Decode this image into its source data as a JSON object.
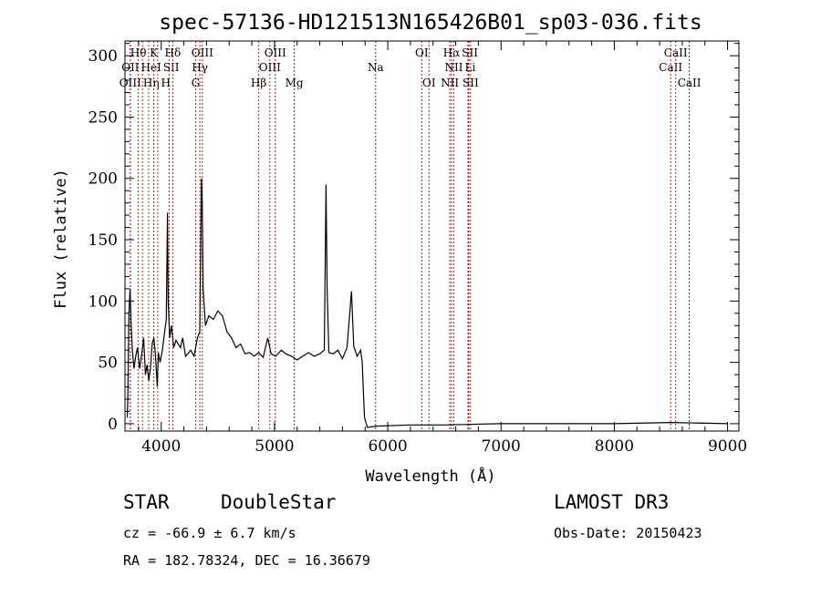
{
  "chart_data": {
    "type": "line",
    "title": "spec-57136-HD121513N165426B01_sp03-036.fits",
    "xlabel": "Wavelength (Å)",
    "ylabel": "Flux (relative)",
    "xlim": [
      3680,
      9100
    ],
    "ylim": [
      -6,
      312
    ],
    "xticks": [
      4000,
      5000,
      6000,
      7000,
      8000,
      9000
    ],
    "yticks": [
      0,
      50,
      100,
      150,
      200,
      250,
      300
    ],
    "grid": false,
    "series": [
      {
        "name": "spectrum",
        "points": [
          [
            3700,
            5
          ],
          [
            3705,
            20
          ],
          [
            3715,
            90
          ],
          [
            3725,
            110
          ],
          [
            3735,
            80
          ],
          [
            3745,
            60
          ],
          [
            3760,
            45
          ],
          [
            3775,
            55
          ],
          [
            3790,
            62
          ],
          [
            3810,
            45
          ],
          [
            3830,
            58
          ],
          [
            3845,
            70
          ],
          [
            3860,
            40
          ],
          [
            3875,
            48
          ],
          [
            3890,
            35
          ],
          [
            3905,
            45
          ],
          [
            3920,
            65
          ],
          [
            3935,
            70
          ],
          [
            3950,
            55
          ],
          [
            3965,
            30
          ],
          [
            3975,
            58
          ],
          [
            3990,
            50
          ],
          [
            4010,
            60
          ],
          [
            4030,
            75
          ],
          [
            4045,
            85
          ],
          [
            4055,
            172
          ],
          [
            4062,
            100
          ],
          [
            4075,
            70
          ],
          [
            4090,
            80
          ],
          [
            4110,
            62
          ],
          [
            4130,
            68
          ],
          [
            4150,
            65
          ],
          [
            4170,
            62
          ],
          [
            4190,
            70
          ],
          [
            4215,
            55
          ],
          [
            4235,
            57
          ],
          [
            4260,
            60
          ],
          [
            4290,
            55
          ],
          [
            4320,
            70
          ],
          [
            4340,
            75
          ],
          [
            4355,
            200
          ],
          [
            4362,
            180
          ],
          [
            4370,
            110
          ],
          [
            4390,
            80
          ],
          [
            4420,
            88
          ],
          [
            4460,
            85
          ],
          [
            4500,
            92
          ],
          [
            4540,
            88
          ],
          [
            4580,
            75
          ],
          [
            4620,
            70
          ],
          [
            4660,
            62
          ],
          [
            4700,
            65
          ],
          [
            4740,
            57
          ],
          [
            4780,
            58
          ],
          [
            4820,
            55
          ],
          [
            4860,
            58
          ],
          [
            4900,
            54
          ],
          [
            4940,
            70
          ],
          [
            4970,
            57
          ],
          [
            5010,
            55
          ],
          [
            5060,
            60
          ],
          [
            5100,
            57
          ],
          [
            5150,
            55
          ],
          [
            5200,
            52
          ],
          [
            5250,
            55
          ],
          [
            5300,
            58
          ],
          [
            5350,
            55
          ],
          [
            5400,
            57
          ],
          [
            5440,
            60
          ],
          [
            5455,
            195
          ],
          [
            5465,
            110
          ],
          [
            5480,
            58
          ],
          [
            5520,
            57
          ],
          [
            5560,
            60
          ],
          [
            5600,
            53
          ],
          [
            5640,
            62
          ],
          [
            5680,
            108
          ],
          [
            5700,
            63
          ],
          [
            5730,
            55
          ],
          [
            5760,
            60
          ],
          [
            5775,
            50
          ],
          [
            5785,
            25
          ],
          [
            5795,
            5
          ],
          [
            5820,
            -3
          ],
          [
            5900,
            -2
          ],
          [
            6200,
            -1
          ],
          [
            6500,
            -1
          ],
          [
            7000,
            0
          ],
          [
            7500,
            0
          ],
          [
            8000,
            0
          ],
          [
            8500,
            1
          ],
          [
            9000,
            0
          ]
        ]
      }
    ],
    "lines": [
      {
        "label": "OII",
        "wl": 3727,
        "row": 2,
        "color": "#b22222"
      },
      {
        "label": "OIII",
        "wl": 3727,
        "row": 3,
        "color": "#b22222"
      },
      {
        "label": "Hθ",
        "wl": 3798,
        "row": 1,
        "color": "#b22222"
      },
      {
        "label": "Hη",
        "wl": 3835,
        "row": 3,
        "color": "#b22222"
      },
      {
        "label": "HeI",
        "wl": 3889,
        "row": 2,
        "color": "#b22222"
      },
      {
        "label": "K",
        "wl": 3934,
        "row": 1,
        "color": "#b22222"
      },
      {
        "label": "H",
        "wl": 3969,
        "row": 3,
        "color": "#b22222"
      },
      {
        "label": "SII",
        "wl": 4070,
        "row": 2,
        "color": "#b22222"
      },
      {
        "label": "Hδ",
        "wl": 4102,
        "row": 1,
        "color": "#b22222"
      },
      {
        "label": "G",
        "wl": 4304,
        "row": 3,
        "color": "#b22222"
      },
      {
        "label": "Hγ",
        "wl": 4341,
        "row": 2,
        "color": "#b22222"
      },
      {
        "label": "OIII",
        "wl": 4363,
        "row": 1,
        "color": "#b22222"
      },
      {
        "label": "Hβ",
        "wl": 4861,
        "row": 3,
        "color": "#b22222"
      },
      {
        "label": "OIII",
        "wl": 4959,
        "row": 2,
        "color": "#b22222"
      },
      {
        "label": "OIII",
        "wl": 5007,
        "row": 1,
        "color": "#b22222"
      },
      {
        "label": "Mg",
        "wl": 5175,
        "row": 3,
        "color": "#333333"
      },
      {
        "label": "Na",
        "wl": 5893,
        "row": 2,
        "color": "#333333"
      },
      {
        "label": "OI",
        "wl": 6300,
        "row": 1,
        "color": "#b22222"
      },
      {
        "label": "OI",
        "wl": 6364,
        "row": 3,
        "color": "#b22222"
      },
      {
        "label": "NII",
        "wl": 6548,
        "row": 3,
        "color": "#b22222"
      },
      {
        "label": "Hα",
        "wl": 6563,
        "row": 1,
        "color": "#b22222"
      },
      {
        "label": "NII",
        "wl": 6583,
        "row": 2,
        "color": "#b22222"
      },
      {
        "label": "Li",
        "wl": 6708,
        "row": 2,
        "color": "#b22222"
      },
      {
        "label": "SII",
        "wl": 6716,
        "row": 1,
        "color": "#b22222"
      },
      {
        "label": "SII",
        "wl": 6731,
        "row": 3,
        "color": "#b22222"
      },
      {
        "label": "CaII",
        "wl": 8498,
        "row": 2,
        "color": "#b22222"
      },
      {
        "label": "CaII",
        "wl": 8542,
        "row": 1,
        "color": "#b22222"
      },
      {
        "label": "CaII",
        "wl": 8662,
        "row": 3,
        "color": "#333333"
      }
    ]
  },
  "info": {
    "class": "STAR",
    "subclass": "DoubleStar",
    "survey": "LAMOST DR3",
    "cz": "cz = -66.9 ± 6.7 km/s",
    "obs_date": "Obs-Date: 20150423",
    "coords": "RA = 182.78324, DEC =  16.36679"
  }
}
